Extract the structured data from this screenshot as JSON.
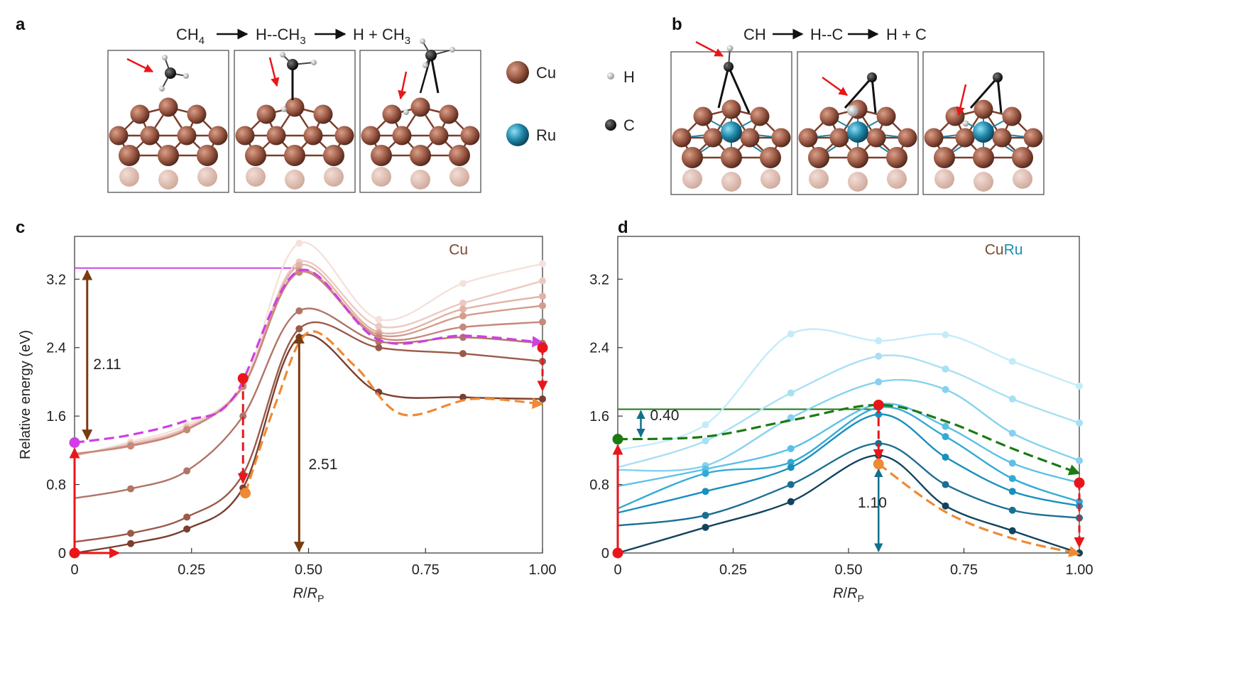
{
  "panels": {
    "a": {
      "letter": "a",
      "reaction": {
        "s1": "CH",
        "s1_sub": "4",
        "s2": "H--CH",
        "s2_sub": "3",
        "s3": "H + CH",
        "s3_sub": "3"
      }
    },
    "b": {
      "letter": "b",
      "reaction": {
        "s1": "CH",
        "s2": "H--C",
        "s3": "H + C"
      }
    },
    "c": {
      "letter": "c"
    },
    "d": {
      "letter": "d"
    }
  },
  "legend": {
    "cu": "Cu",
    "ru": "Ru",
    "h": "H",
    "c": "C",
    "colors": {
      "cu": "#9c5a45",
      "ru": "#1f86a8",
      "h": "#cfcfcf",
      "c": "#111111"
    }
  },
  "colors": {
    "cu_label": "#7a4a2e",
    "ru_label": "#1a8fb3",
    "red": "#e8161b",
    "magenta": "#cf3fe3",
    "orange": "#ee8a35",
    "brown_arrow": "#7a3b10",
    "green": "#1b7a12",
    "teal_arrow": "#12708a"
  },
  "chart_data": [
    {
      "id": "c",
      "type": "line",
      "title": "",
      "label": "Cu",
      "xlabel": "R/RP",
      "xlabel_parts": {
        "main": "R",
        "slash": "/",
        "denom": "R",
        "denom_sub": "P"
      },
      "ylabel": "Relative energy (eV)",
      "xlim": [
        0,
        1.0
      ],
      "ylim": [
        0,
        3.7
      ],
      "xticks": [
        0,
        0.25,
        0.5,
        0.75,
        1.0
      ],
      "xtick_labels": [
        "0",
        "0.25",
        "0.50",
        "0.75",
        "1.00"
      ],
      "yticks": [
        0,
        0.8,
        1.6,
        2.4,
        3.2
      ],
      "ytick_labels": [
        "0",
        "0.8",
        "1.6",
        "2.4",
        "3.2"
      ],
      "series": [
        {
          "name": "s1",
          "color": "#f5e1dc",
          "x": [
            0,
            0.12,
            0.24,
            0.36,
            0.48,
            0.65,
            0.83,
            1.0
          ],
          "y": [
            1.13,
            1.3,
            1.5,
            1.98,
            3.62,
            2.73,
            3.15,
            3.38
          ]
        },
        {
          "name": "s2",
          "color": "#ecc9c0",
          "x": [
            0,
            0.12,
            0.24,
            0.36,
            0.48,
            0.65,
            0.83,
            1.0
          ],
          "y": [
            1.14,
            1.28,
            1.47,
            1.96,
            3.4,
            2.65,
            2.92,
            3.18
          ]
        },
        {
          "name": "s3",
          "color": "#e2b2a6",
          "x": [
            0,
            0.12,
            0.24,
            0.36,
            0.48,
            0.65,
            0.83,
            1.0
          ],
          "y": [
            1.15,
            1.26,
            1.45,
            1.94,
            3.36,
            2.58,
            2.85,
            3.0
          ]
        },
        {
          "name": "s4",
          "color": "#d39c8c",
          "x": [
            0,
            0.12,
            0.24,
            0.36,
            0.48,
            0.65,
            0.83,
            1.0
          ],
          "y": [
            1.15,
            1.26,
            1.44,
            1.95,
            3.3,
            2.55,
            2.77,
            2.89
          ]
        },
        {
          "name": "s5",
          "color": "#c6887a",
          "x": [
            0,
            0.12,
            0.24,
            0.36,
            0.48,
            0.65,
            0.83,
            1.0
          ],
          "y": [
            1.16,
            1.25,
            1.44,
            1.95,
            3.28,
            2.52,
            2.64,
            2.7
          ]
        },
        {
          "name": "s6",
          "color": "#b07566",
          "x": [
            0,
            0.12,
            0.24,
            0.36,
            0.48,
            0.65,
            0.83,
            1.0
          ],
          "y": [
            0.64,
            0.75,
            0.96,
            1.6,
            2.83,
            2.47,
            2.52,
            2.45
          ]
        },
        {
          "name": "s7",
          "color": "#9a5a48",
          "x": [
            0,
            0.12,
            0.24,
            0.36,
            0.48,
            0.65,
            0.83,
            1.0
          ],
          "y": [
            0.13,
            0.23,
            0.42,
            0.92,
            2.62,
            2.4,
            2.33,
            2.24
          ]
        },
        {
          "name": "s8",
          "color": "#7a3f2e",
          "x": [
            0,
            0.12,
            0.24,
            0.36,
            0.48,
            0.65,
            0.83,
            1.0
          ],
          "y": [
            0.0,
            0.11,
            0.28,
            0.76,
            2.52,
            1.88,
            1.82,
            1.8
          ]
        }
      ],
      "guides": [
        {
          "name": "magenta-path",
          "color": "#cf3fe3",
          "dashed": true,
          "x": [
            0,
            0.12,
            0.24,
            0.34,
            0.48,
            0.65,
            0.83,
            1.0
          ],
          "y": [
            1.29,
            1.38,
            1.55,
            1.82,
            3.3,
            2.49,
            2.54,
            2.46
          ]
        },
        {
          "name": "orange-path",
          "color": "#ee8a35",
          "dashed": true,
          "x": [
            0.365,
            0.43,
            0.5,
            0.6,
            0.7,
            0.85,
            1.0
          ],
          "y": [
            0.7,
            1.75,
            2.58,
            2.18,
            1.62,
            1.8,
            1.74
          ]
        }
      ],
      "points": [
        {
          "x": 0,
          "y": 1.29,
          "color": "#cf3fe3"
        },
        {
          "x": 0,
          "y": 0.0,
          "color": "#e8161b"
        },
        {
          "x": 0.36,
          "y": 2.04,
          "color": "#e8161b"
        },
        {
          "x": 0.365,
          "y": 0.7,
          "color": "#ee8a35"
        },
        {
          "x": 1.0,
          "y": 2.4,
          "color": "#e8161b"
        }
      ],
      "annotations": [
        {
          "text": "2.11",
          "x": 0.04,
          "y": 2.15
        },
        {
          "text": "2.51",
          "x": 0.5,
          "y": 0.98
        }
      ],
      "ref_line": {
        "x0": 0,
        "x1": 0.48,
        "y": 3.33,
        "color": "#cf3fe3"
      }
    },
    {
      "id": "d",
      "type": "line",
      "title": "",
      "label_parts": {
        "cu": "Cu",
        "ru": "Ru"
      },
      "xlabel": "R/RP",
      "xlabel_parts": {
        "main": "R",
        "slash": "/",
        "denom": "R",
        "denom_sub": "P"
      },
      "ylabel": "",
      "xlim": [
        0,
        1.0
      ],
      "ylim": [
        0,
        3.7
      ],
      "xticks": [
        0,
        0.25,
        0.5,
        0.75,
        1.0
      ],
      "xtick_labels": [
        "0",
        "0.25",
        "0.50",
        "0.75",
        "1.00"
      ],
      "yticks": [
        0,
        0.8,
        1.6,
        2.4,
        3.2
      ],
      "ytick_labels": [
        "0",
        "0.8",
        "1.6",
        "2.4",
        "3.2"
      ],
      "series": [
        {
          "name": "t1",
          "color": "#c4ecf8",
          "x": [
            0,
            0.19,
            0.375,
            0.565,
            0.71,
            0.855,
            1.0
          ],
          "y": [
            1.2,
            1.5,
            2.56,
            2.48,
            2.55,
            2.24,
            1.95
          ]
        },
        {
          "name": "t2",
          "color": "#a8e0f4",
          "x": [
            0,
            0.19,
            0.375,
            0.565,
            0.71,
            0.855,
            1.0
          ],
          "y": [
            1.0,
            1.31,
            1.87,
            2.3,
            2.15,
            1.8,
            1.52
          ]
        },
        {
          "name": "t3",
          "color": "#86d2ee",
          "x": [
            0,
            0.19,
            0.375,
            0.565,
            0.71,
            0.855,
            1.0
          ],
          "y": [
            0.97,
            1.02,
            1.58,
            2.0,
            1.91,
            1.4,
            1.08
          ]
        },
        {
          "name": "t4",
          "color": "#5cc0e6",
          "x": [
            0,
            0.19,
            0.375,
            0.565,
            0.71,
            0.855,
            1.0
          ],
          "y": [
            0.78,
            0.98,
            1.22,
            1.74,
            1.48,
            1.05,
            0.82
          ]
        },
        {
          "name": "t5",
          "color": "#32aad6",
          "x": [
            0,
            0.19,
            0.375,
            0.565,
            0.71,
            0.855,
            1.0
          ],
          "y": [
            0.52,
            0.93,
            1.06,
            1.7,
            1.36,
            0.87,
            0.6
          ]
        },
        {
          "name": "t6",
          "color": "#1a8fbf",
          "x": [
            0,
            0.19,
            0.375,
            0.565,
            0.71,
            0.855,
            1.0
          ],
          "y": [
            0.47,
            0.72,
            1.0,
            1.62,
            1.12,
            0.72,
            0.55
          ]
        },
        {
          "name": "t7",
          "color": "#1b6f92",
          "x": [
            0,
            0.19,
            0.375,
            0.565,
            0.71,
            0.855,
            1.0
          ],
          "y": [
            0.32,
            0.44,
            0.8,
            1.28,
            0.8,
            0.5,
            0.41
          ]
        },
        {
          "name": "t8",
          "color": "#11445c",
          "x": [
            0,
            0.19,
            0.375,
            0.565,
            0.71,
            0.855,
            1.0
          ],
          "y": [
            0.0,
            0.3,
            0.6,
            1.14,
            0.55,
            0.26,
            0.0
          ]
        }
      ],
      "guides": [
        {
          "name": "green-path",
          "color": "#1b7a12",
          "dashed": true,
          "x": [
            0,
            0.19,
            0.375,
            0.565,
            0.71,
            0.855,
            1.0
          ],
          "y": [
            1.33,
            1.36,
            1.55,
            1.73,
            1.54,
            1.22,
            0.93
          ]
        },
        {
          "name": "orange-path",
          "color": "#ee8a35",
          "dashed": true,
          "x": [
            0.565,
            0.71,
            0.855,
            1.0
          ],
          "y": [
            1.04,
            0.48,
            0.17,
            -0.01
          ]
        }
      ],
      "points": [
        {
          "x": 0,
          "y": 1.33,
          "color": "#1b7a12"
        },
        {
          "x": 0,
          "y": 0.0,
          "color": "#e8161b"
        },
        {
          "x": 0.565,
          "y": 1.73,
          "color": "#e8161b"
        },
        {
          "x": 0.565,
          "y": 1.04,
          "color": "#ee8a35"
        },
        {
          "x": 1.0,
          "y": 0.82,
          "color": "#e8161b"
        }
      ],
      "annotations": [
        {
          "text": "0.40",
          "x": 0.07,
          "y": 1.55
        },
        {
          "text": "1.10",
          "x": 0.52,
          "y": 0.53
        }
      ],
      "ref_line": {
        "x0": 0,
        "x1": 0.565,
        "y": 1.68,
        "color": "#1b7a12"
      }
    }
  ]
}
